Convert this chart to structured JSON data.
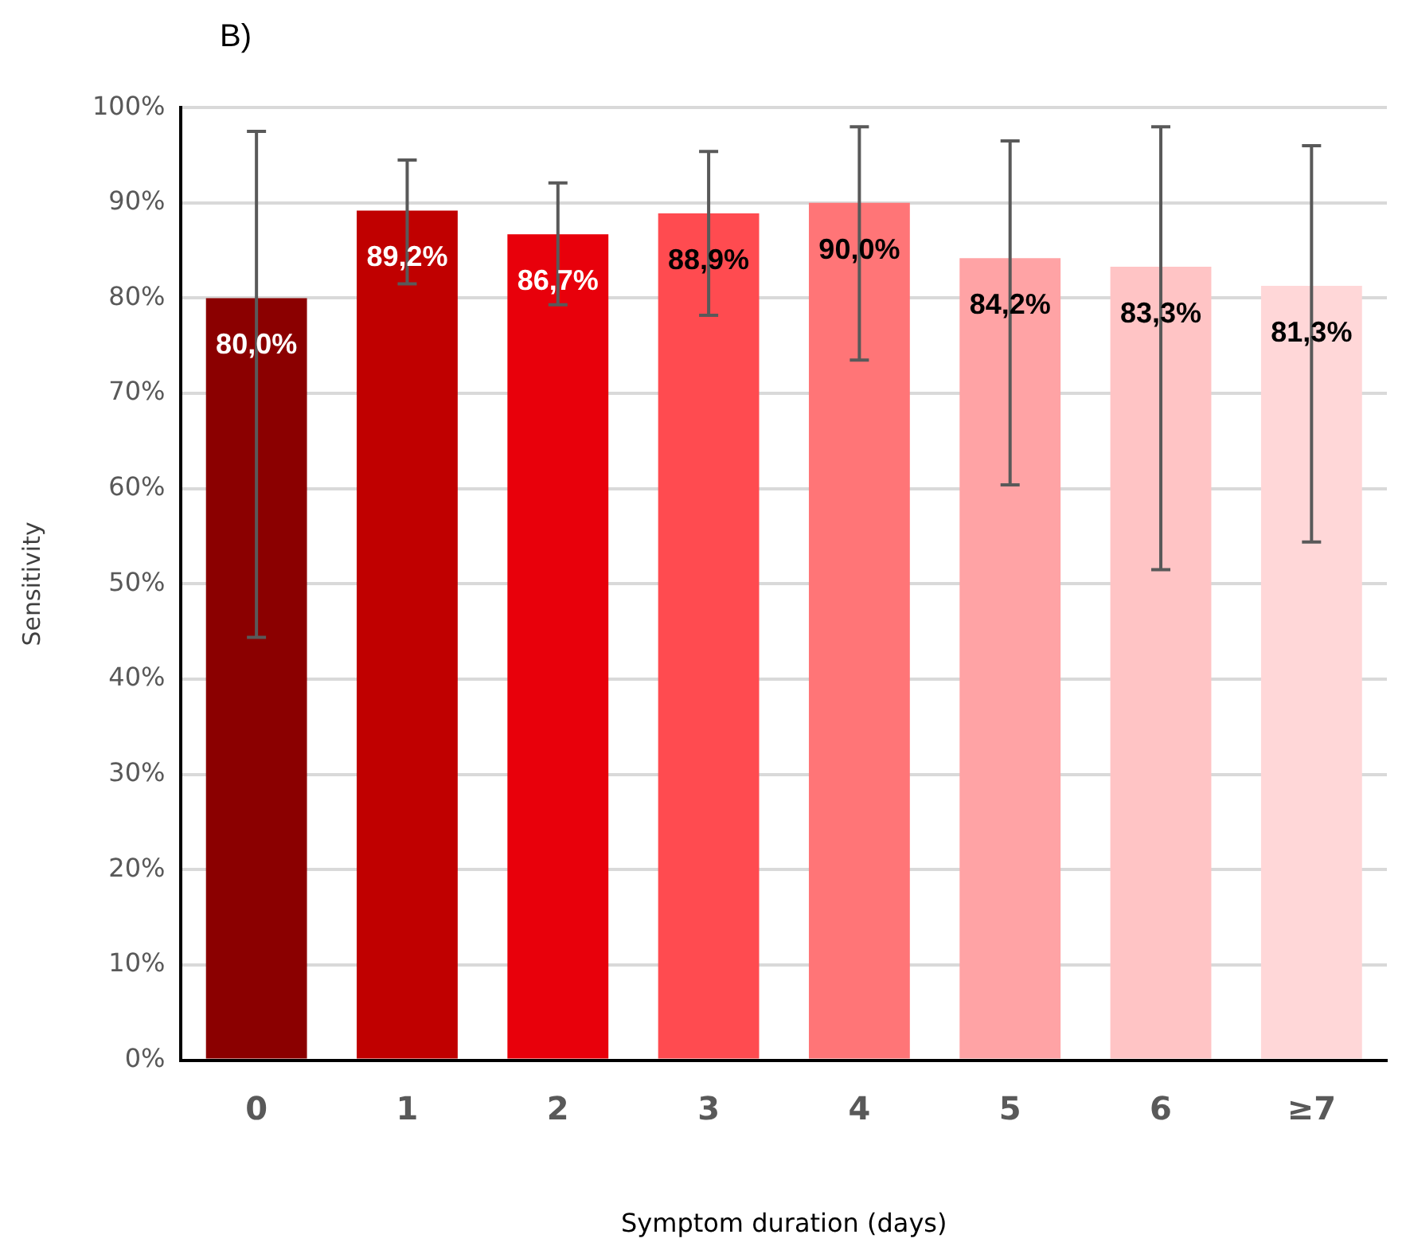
{
  "chart_data": {
    "type": "bar",
    "annotations": [
      "B)"
    ],
    "xlabel": "Symptom duration (days)",
    "ylabel": "Sensitivity",
    "categories": [
      "0",
      "1",
      "2",
      "3",
      "4",
      "5",
      "6",
      "≥7"
    ],
    "values": [
      80.0,
      89.2,
      86.7,
      88.9,
      90.0,
      84.2,
      83.3,
      81.3
    ],
    "colors": [
      "#8b0000",
      "#c00000",
      "#e8000b",
      "#ff4b50",
      "#ff7577",
      "#ffa3a5",
      "#ffc4c5",
      "#ffd7d8"
    ],
    "errors": [
      [
        44.4,
        97.5
      ],
      [
        81.5,
        94.5
      ],
      [
        79.3,
        92.1
      ],
      [
        78.2,
        95.4
      ],
      [
        73.5,
        98.0
      ],
      [
        60.4,
        96.5
      ],
      [
        51.5,
        98.0
      ],
      [
        54.4,
        96.0
      ]
    ],
    "value_labels": [
      "80,0%",
      "89,2%",
      "86,7%",
      "88,9%",
      "90,0%",
      "84,2%",
      "83,3%",
      "81,3%"
    ],
    "ylim": [
      0,
      100
    ],
    "yticks": [
      {
        "value": 0,
        "label": "0%"
      },
      {
        "value": 10,
        "label": "10%"
      },
      {
        "value": 20,
        "label": "20%"
      },
      {
        "value": 30,
        "label": "30%"
      },
      {
        "value": 40,
        "label": "40%"
      },
      {
        "value": 50,
        "label": "50%"
      },
      {
        "value": 60,
        "label": "60%"
      },
      {
        "value": 70,
        "label": "70%"
      },
      {
        "value": 80,
        "label": "80%"
      },
      {
        "value": 90,
        "label": "90%"
      },
      {
        "value": 100,
        "label": "100%"
      }
    ],
    "grid": "y",
    "legend": false
  }
}
